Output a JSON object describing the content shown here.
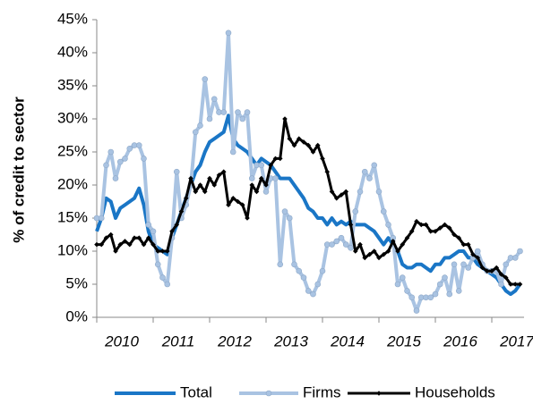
{
  "chart_data": {
    "type": "line",
    "y_label": "% of credit to sector",
    "categories": [
      "2010",
      null,
      null,
      null,
      null,
      null,
      null,
      null,
      null,
      null,
      null,
      null,
      "2011",
      null,
      null,
      null,
      null,
      null,
      null,
      null,
      null,
      null,
      null,
      null,
      "2012",
      null,
      null,
      null,
      null,
      null,
      null,
      null,
      null,
      null,
      null,
      null,
      "2013",
      null,
      null,
      null,
      null,
      null,
      null,
      null,
      null,
      null,
      null,
      null,
      "2014",
      null,
      null,
      null,
      null,
      null,
      null,
      null,
      null,
      null,
      null,
      null,
      "2015",
      null,
      null,
      null,
      null,
      null,
      null,
      null,
      null,
      null,
      null,
      null,
      "2016",
      null,
      null,
      null,
      null,
      null,
      null,
      null,
      null,
      null,
      null,
      null,
      "2017",
      null,
      null,
      null,
      null,
      null,
      null
    ],
    "series": [
      {
        "name": "Total",
        "color": "#1a76c6",
        "marker": "none",
        "width": 4,
        "values": [
          13,
          15,
          18,
          17.5,
          15,
          16.5,
          17,
          17.5,
          18,
          19.5,
          17,
          13,
          11,
          10.5,
          10,
          9.5,
          12,
          14,
          16,
          18,
          20,
          22,
          23,
          25,
          26.5,
          27,
          27.5,
          28,
          30.5,
          27,
          26,
          25.5,
          25,
          24,
          23,
          24,
          23.5,
          23,
          22,
          21,
          21,
          21,
          20,
          19,
          18,
          16.5,
          16,
          15,
          15,
          14,
          15,
          14,
          14.5,
          14,
          14.5,
          14,
          14,
          14,
          13.5,
          13,
          12,
          11,
          12,
          11,
          10,
          8,
          7.5,
          7.5,
          8,
          8,
          7.5,
          7,
          8,
          8,
          9,
          9,
          9.5,
          10,
          10,
          9,
          9,
          8,
          7.5,
          7,
          6.5,
          6,
          5,
          4,
          3.5,
          4,
          5
        ]
      },
      {
        "name": "Firms",
        "color": "#a9c3e2",
        "marker": "circle",
        "width": 4,
        "values": [
          15,
          15,
          23,
          25,
          21,
          23.5,
          24,
          25.5,
          26,
          26,
          24,
          14,
          13,
          8,
          6,
          5,
          12,
          22,
          15,
          17,
          20,
          28,
          29,
          36,
          30,
          33,
          31,
          31,
          43,
          25,
          31,
          30,
          31,
          21,
          23,
          23,
          19,
          21,
          21,
          8,
          16,
          15,
          8,
          7,
          6,
          4,
          3.5,
          5,
          7,
          11,
          11,
          11.5,
          12,
          11,
          10.5,
          16,
          19,
          22,
          21,
          23,
          19,
          16,
          14,
          12,
          5,
          6,
          4,
          3,
          1,
          3,
          3,
          3,
          3.5,
          5,
          6,
          3.5,
          8,
          4,
          8,
          7.5,
          9,
          10,
          8,
          7,
          7,
          7,
          5,
          8,
          9,
          9,
          10
        ]
      },
      {
        "name": "Households",
        "color": "#000000",
        "marker": "diamond",
        "width": 3,
        "values": [
          11,
          11,
          12,
          12.5,
          10,
          11,
          11.5,
          11,
          12,
          12,
          11,
          12,
          11,
          10,
          10,
          10,
          13,
          14,
          16,
          18,
          21,
          19,
          20,
          19,
          21,
          20,
          21.5,
          22,
          17,
          18,
          17.5,
          17,
          15,
          20,
          19,
          21,
          20,
          23,
          24,
          24,
          30,
          27,
          26,
          27,
          26.5,
          26,
          25,
          26,
          24,
          22,
          19,
          18,
          18.5,
          19,
          14,
          10,
          11,
          9,
          9.5,
          10,
          9,
          9.5,
          10,
          11.5,
          10,
          11,
          12,
          13,
          14.5,
          14,
          14,
          13,
          13,
          13.5,
          14,
          13.5,
          12.5,
          12,
          11,
          11,
          9.5,
          9,
          7.5,
          7,
          7,
          7.5,
          6.5,
          6,
          5,
          5,
          5
        ]
      }
    ],
    "ylim": [
      0,
      45
    ],
    "yticks": [
      {
        "value": 0,
        "label": "0%"
      },
      {
        "value": 5,
        "label": "5%"
      },
      {
        "value": 10,
        "label": "10%"
      },
      {
        "value": 15,
        "label": "15%"
      },
      {
        "value": 20,
        "label": "20%"
      },
      {
        "value": 25,
        "label": "25%"
      },
      {
        "value": 30,
        "label": "30%"
      },
      {
        "value": 35,
        "label": "35%"
      },
      {
        "value": 40,
        "label": "40%"
      },
      {
        "value": 45,
        "label": "45%"
      }
    ],
    "grid": false,
    "legend": "bottom"
  }
}
